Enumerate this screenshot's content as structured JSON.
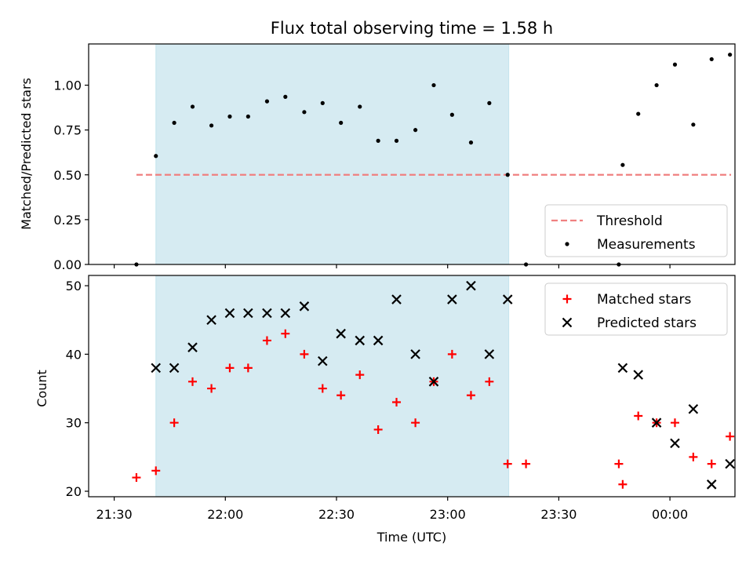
{
  "chart_data": [
    {
      "type": "scatter",
      "title": "Flux total observing time = 1.58 h",
      "xlabel": "",
      "ylabel": "Matched/Predicted stars",
      "xlim": [
        -4.6,
        111.7
      ],
      "ylim": [
        0.0,
        1.23
      ],
      "yticks": [
        0.0,
        0.25,
        0.5,
        0.75,
        1.0
      ],
      "ytick_labels": [
        "0.00",
        "0.25",
        "0.50",
        "0.75",
        "1.00"
      ],
      "xticks": [
        0,
        20,
        40,
        60,
        80,
        100
      ],
      "shaded_span": {
        "x": [
          7.5,
          71
        ],
        "color": "#add8e6"
      },
      "legend": {
        "placement": "lower-right",
        "entries": [
          "Threshold",
          "Measurements"
        ]
      },
      "series": [
        {
          "name": "Threshold",
          "style": "dashed-line",
          "color": "#f08080",
          "x": [
            4,
            111
          ],
          "y": [
            0.5,
            0.5
          ]
        },
        {
          "name": "Measurements",
          "style": "dot",
          "color": "#000000",
          "x": [
            4,
            7.5,
            10.8,
            14.1,
            17.5,
            20.8,
            24.1,
            27.5,
            30.8,
            34.2,
            37.5,
            40.8,
            44.2,
            47.5,
            50.8,
            54.2,
            57.5,
            60.8,
            64.2,
            67.5,
            70.8,
            74.1,
            90.8,
            91.5,
            94.3,
            97.6,
            100.9,
            104.2,
            107.5,
            110.8
          ],
          "y": [
            0.0,
            0.605,
            0.79,
            0.88,
            0.775,
            0.825,
            0.825,
            0.91,
            0.935,
            0.85,
            0.9,
            0.79,
            0.88,
            0.69,
            0.69,
            0.75,
            1.0,
            0.835,
            0.68,
            0.9,
            0.5,
            0.0,
            0.0,
            0.555,
            0.84,
            1.0,
            1.115,
            0.78,
            1.145,
            1.17
          ]
        }
      ]
    },
    {
      "type": "scatter",
      "title": "",
      "xlabel": "Time (UTC)",
      "ylabel": "Count",
      "xlim": [
        -4.6,
        111.7
      ],
      "ylim": [
        19.2,
        51.5
      ],
      "yticks": [
        20,
        30,
        40,
        50
      ],
      "ytick_labels": [
        "20",
        "30",
        "40",
        "50"
      ],
      "xticks": [
        0,
        20,
        40,
        60,
        80,
        100
      ],
      "xtick_labels": [
        "21:30",
        "22:00",
        "22:30",
        "23:00",
        "23:30",
        "00:00"
      ],
      "shaded_span": {
        "x": [
          7.5,
          71
        ],
        "color": "#add8e6"
      },
      "legend": {
        "placement": "top-right",
        "entries": [
          "Matched stars",
          "Predicted stars"
        ]
      },
      "series": [
        {
          "name": "Matched stars",
          "marker": "plus",
          "color": "#ff0000",
          "x": [
            4,
            7.5,
            10.8,
            14.1,
            17.5,
            20.8,
            24.1,
            27.5,
            30.8,
            34.2,
            37.5,
            40.8,
            44.2,
            47.5,
            50.8,
            54.2,
            57.5,
            60.8,
            64.2,
            67.5,
            70.8,
            74.1,
            90.8,
            91.5,
            94.3,
            97.6,
            100.9,
            104.2,
            107.5,
            110.8
          ],
          "y": [
            22,
            23,
            30,
            36,
            35,
            38,
            38,
            42,
            43,
            40,
            35,
            34,
            37,
            29,
            33,
            30,
            36,
            40,
            34,
            36,
            24,
            24,
            24,
            21,
            31,
            30,
            30,
            25,
            24,
            28
          ]
        },
        {
          "name": "Predicted stars",
          "marker": "x",
          "color": "#000000",
          "x": [
            7.5,
            10.8,
            14.1,
            17.5,
            20.8,
            24.1,
            27.5,
            30.8,
            34.2,
            37.5,
            40.8,
            44.2,
            47.5,
            50.8,
            54.2,
            57.5,
            60.8,
            64.2,
            67.5,
            70.8,
            91.5,
            94.3,
            97.6,
            100.9,
            104.2,
            107.5,
            110.8
          ],
          "y": [
            38,
            38,
            41,
            45,
            46,
            46,
            46,
            46,
            47,
            39,
            43,
            42,
            42,
            48,
            40,
            36,
            48,
            50,
            40,
            48,
            38,
            37,
            30,
            27,
            32,
            21,
            24
          ]
        }
      ]
    }
  ]
}
